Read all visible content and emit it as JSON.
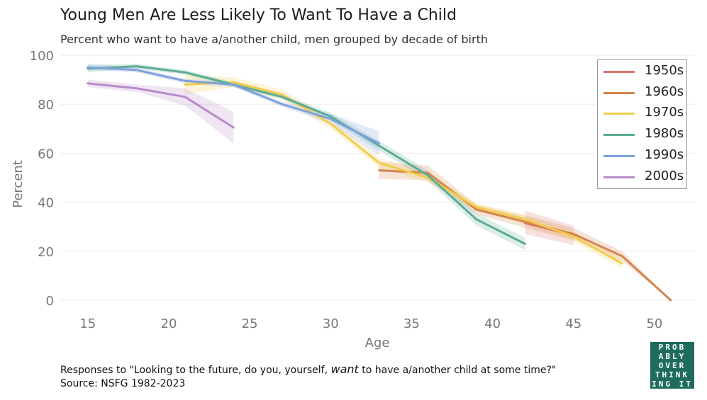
{
  "title": "Young Men Are Less Likely To Want To Have a Child",
  "subtitle": "Percent who want to have a/another child, men grouped by decade of birth",
  "footnote_prefix": "Responses to \"Looking to the future, do you, yourself, ",
  "footnote_emph": "want",
  "footnote_suffix": " to have a/another child at some time?\"",
  "source": "Source: NSFG 1982-2023",
  "logo_lines": [
    "PROB",
    "ABLY",
    "OVER",
    "THINK",
    "ING IT"
  ],
  "chart_data": {
    "type": "line",
    "xlabel": "Age",
    "ylabel": "Percent",
    "xlim": [
      13.3,
      52.5
    ],
    "ylim": [
      0,
      100
    ],
    "x_ticks": [
      15,
      20,
      25,
      30,
      35,
      40,
      45,
      50
    ],
    "y_ticks": [
      0,
      20,
      40,
      60,
      80,
      100
    ],
    "grid": true,
    "legend_position": "top-right",
    "series": [
      {
        "name": "1950s",
        "color": "#d9736a",
        "x": [
          42,
          45
        ],
        "y": [
          31.5,
          26.5
        ],
        "lo": [
          27,
          22.5
        ],
        "hi": [
          36.5,
          30.5
        ]
      },
      {
        "name": "1960s",
        "color": "#d4844d",
        "x": [
          33,
          36,
          39,
          42,
          45,
          48,
          51
        ],
        "y": [
          53,
          52,
          37,
          32,
          27,
          18,
          0
        ],
        "lo": [
          49.5,
          49,
          35,
          29.5,
          24.5,
          16,
          0
        ],
        "hi": [
          56.5,
          55,
          39,
          34.5,
          29.5,
          20,
          0
        ]
      },
      {
        "name": "1970s",
        "color": "#f2cc4d",
        "x": [
          21,
          24,
          27,
          30,
          33,
          36,
          39,
          42,
          45,
          48
        ],
        "y": [
          88,
          89,
          84,
          72,
          56,
          50,
          38,
          33,
          26,
          15
        ],
        "lo": [
          84,
          87,
          82,
          70,
          54,
          48,
          36.5,
          31,
          24,
          13
        ],
        "hi": [
          92,
          91,
          86,
          74,
          58,
          52,
          39.5,
          35,
          28,
          17
        ]
      },
      {
        "name": "1980s",
        "color": "#5bab95",
        "x": [
          15,
          18,
          21,
          24,
          27,
          30,
          33,
          36,
          39,
          42
        ],
        "y": [
          94.5,
          95.5,
          93,
          88,
          83,
          75,
          63,
          51,
          33,
          23
        ],
        "lo": [
          93,
          94.5,
          92,
          87,
          82,
          73.5,
          61,
          49,
          30.5,
          20.5
        ],
        "hi": [
          96,
          96.5,
          94,
          89,
          84,
          76.5,
          65,
          53,
          35.5,
          25.5
        ]
      },
      {
        "name": "1990s",
        "color": "#7ea1dc",
        "x": [
          15,
          18,
          21,
          24,
          27,
          30,
          33
        ],
        "y": [
          95,
          94,
          89.5,
          88,
          80,
          74,
          64
        ],
        "lo": [
          94,
          93,
          88.5,
          87,
          79,
          72,
          59
        ],
        "hi": [
          96.5,
          95,
          90.5,
          89,
          81,
          76,
          69
        ]
      },
      {
        "name": "2000s",
        "color": "#b88ac9",
        "x": [
          15,
          18,
          21,
          24
        ],
        "y": [
          88.5,
          86.5,
          83,
          70.5
        ],
        "lo": [
          87,
          85,
          79.5,
          64
        ],
        "hi": [
          90,
          88,
          86.5,
          77
        ]
      }
    ]
  }
}
